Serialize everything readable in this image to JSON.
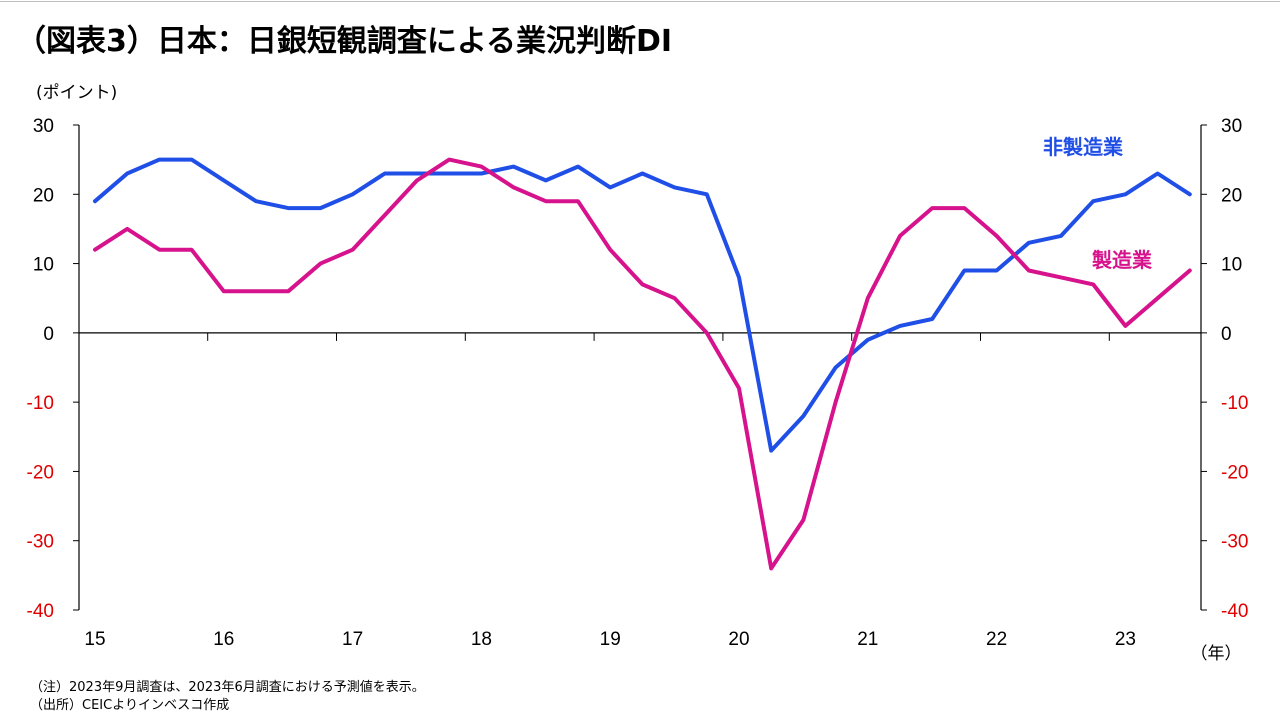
{
  "title": "（図表3）日本：日銀短観調査による業況判断DI",
  "colors": {
    "non_manufacturing": "#1f4fe6",
    "manufacturing": "#d6128c",
    "negative_tick": "#e00000",
    "axis": "#000000"
  },
  "notes": {
    "note1": "（注）2023年9月調査は、2023年6月調査における予測値を表示。",
    "note2": "（出所）CEICよりインベスコ作成"
  },
  "chart_data": {
    "type": "line",
    "title": "（図表3）日本：日銀短観調査による業況判断DI",
    "ylabel_left": "(ポイント)",
    "xlabel": "（年）",
    "ylim": [
      -40,
      30
    ],
    "yticks": [
      30,
      20,
      10,
      0,
      -10,
      -20,
      -30,
      -40
    ],
    "ytick_labels": [
      "30",
      "20",
      "10",
      "0",
      "-10",
      "-20",
      "-30",
      "-40"
    ],
    "x_year_labels": [
      "15",
      "16",
      "17",
      "18",
      "19",
      "20",
      "21",
      "22",
      "23"
    ],
    "x": [
      "2015-03",
      "2015-06",
      "2015-09",
      "2015-12",
      "2016-03",
      "2016-06",
      "2016-09",
      "2016-12",
      "2017-03",
      "2017-06",
      "2017-09",
      "2017-12",
      "2018-03",
      "2018-06",
      "2018-09",
      "2018-12",
      "2019-03",
      "2019-06",
      "2019-09",
      "2019-12",
      "2020-03",
      "2020-06",
      "2020-09",
      "2020-12",
      "2021-03",
      "2021-06",
      "2021-09",
      "2021-12",
      "2022-03",
      "2022-06",
      "2022-09",
      "2022-12",
      "2023-03",
      "2023-06",
      "2023-09"
    ],
    "series": [
      {
        "name": "非製造業",
        "color": "#1f4fe6",
        "values": [
          19,
          23,
          25,
          25,
          22,
          19,
          18,
          18,
          20,
          23,
          23,
          23,
          23,
          24,
          22,
          24,
          21,
          23,
          21,
          20,
          8,
          -17,
          -12,
          -5,
          -1,
          1,
          2,
          9,
          9,
          13,
          14,
          19,
          20,
          23,
          20
        ]
      },
      {
        "name": "製造業",
        "color": "#d6128c",
        "values": [
          12,
          15,
          12,
          12,
          6,
          6,
          6,
          10,
          12,
          17,
          22,
          25,
          24,
          21,
          19,
          19,
          12,
          7,
          5,
          0,
          -8,
          -34,
          -27,
          -10,
          5,
          14,
          18,
          18,
          14,
          9,
          8,
          7,
          1,
          5,
          9
        ]
      }
    ],
    "grid": false,
    "zero_line": true,
    "legend": "inline labels near right end of each series"
  }
}
